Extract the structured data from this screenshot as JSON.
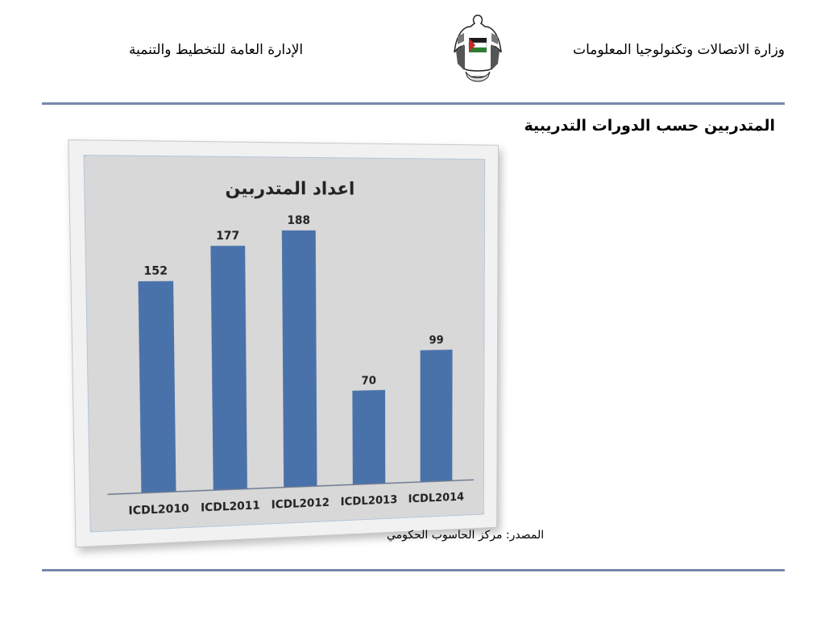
{
  "header": {
    "ministry": "وزارة الاتصالات وتكنولوجيا المعلومات",
    "department": "الإدارة العامة للتخطيط والتنمية"
  },
  "subtitle": "المتدربين حسب الدورات التدريبية",
  "source": "المصدر: مركز الحاسوب الحكومي",
  "colors": {
    "bar": "#4a72aa",
    "rule": "#7688ad",
    "plot_bg": "#d8d8d8"
  },
  "chart_data": {
    "type": "bar",
    "title": "اعداد المتدربين",
    "categories": [
      "ICDL2010",
      "ICDL2011",
      "ICDL2012",
      "ICDL2013",
      "ICDL2014"
    ],
    "values": [
      152,
      177,
      188,
      70,
      99
    ],
    "ylim": [
      0,
      200
    ],
    "grid": false,
    "legend": "none"
  }
}
